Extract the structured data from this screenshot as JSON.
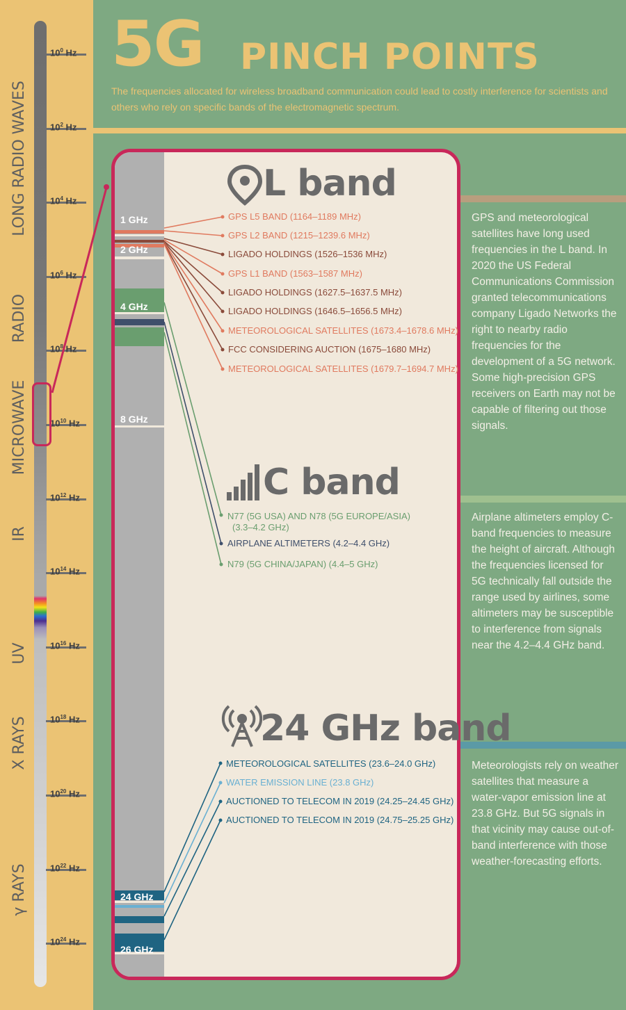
{
  "title": {
    "main": "5G",
    "sub": "PINCH POINTS"
  },
  "subtitle": "The frequencies allocated for wireless broadband communication could lead to costly interference for scientists and others who rely on specific bands of the electromagnetic spectrum.",
  "spectrum": {
    "ticks": [
      {
        "base": "10",
        "exp": "0",
        "unit": "Hz"
      },
      {
        "base": "10",
        "exp": "2",
        "unit": "Hz"
      },
      {
        "base": "10",
        "exp": "4",
        "unit": "Hz"
      },
      {
        "base": "10",
        "exp": "6",
        "unit": "Hz"
      },
      {
        "base": "10",
        "exp": "8",
        "unit": "Hz"
      },
      {
        "base": "10",
        "exp": "10",
        "unit": "Hz"
      },
      {
        "base": "10",
        "exp": "12",
        "unit": "Hz"
      },
      {
        "base": "10",
        "exp": "14",
        "unit": "Hz"
      },
      {
        "base": "10",
        "exp": "16",
        "unit": "Hz"
      },
      {
        "base": "10",
        "exp": "18",
        "unit": "Hz"
      },
      {
        "base": "10",
        "exp": "20",
        "unit": "Hz"
      },
      {
        "base": "10",
        "exp": "22",
        "unit": "Hz"
      },
      {
        "base": "10",
        "exp": "24",
        "unit": "Hz"
      }
    ],
    "regions": [
      "LONG RADIO WAVES",
      "RADIO",
      "MICROWAVE",
      "IR",
      "UV",
      "X RAYS",
      "γ RAYS"
    ]
  },
  "gray_labels": [
    "1 GHz",
    "2 GHz",
    "4 GHz",
    "8 GHz",
    "24 GHz",
    "26 GHz"
  ],
  "l_band": {
    "title": "L band",
    "items": [
      "GPS L5 BAND (1164–1189 MHz)",
      "GPS L2 BAND (1215–1239.6 MHz)",
      "LIGADO HOLDINGS (1526–1536 MHz)",
      "GPS L1 BAND (1563–1587 MHz)",
      "LIGADO HOLDINGS (1627.5–1637.5 MHz)",
      "LIGADO HOLDINGS (1646.5–1656.5 MHz)",
      "METEOROLOGICAL SATELLITES (1673.4–1678.6 MHz)",
      "FCC CONSIDERING AUCTION (1675–1680 MHz)",
      "METEOROLOGICAL SATELLITES (1679.7–1694.7 MHz)"
    ],
    "description": "GPS and meteorological satellites have long used frequencies in the L band. In 2020 the US Federal Communications Commission granted telecommunications company Ligado Networks the right to nearby radio frequencies for the development of a 5G network. Some high-precision GPS receivers on Earth may not be capable of filtering out those signals."
  },
  "c_band": {
    "title": "C band",
    "items": [
      "N77 (5G USA) AND N78 (5G EUROPE/ASIA)",
      "(3.3–4.2 GHz)",
      "AIRPLANE ALTIMETERS (4.2–4.4 GHz)",
      "N79 (5G CHINA/JAPAN) (4.4–5 GHz)"
    ],
    "description": "Airplane altimeters employ C-band frequencies to measure the height of aircraft. Although the frequencies licensed for 5G technically fall outside the range used by airlines, some altimeters may be susceptible to interference from signals near the 4.2–4.4 GHz band."
  },
  "ghz24_band": {
    "title": "24 GHz band",
    "items": [
      "METEOROLOGICAL SATELLITES (23.6–24.0 GHz)",
      "WATER EMISSION LINE (23.8 GHz)",
      "AUCTIONED TO TELECOM IN 2019 (24.25–24.45 GHz)",
      "AUCTIONED TO TELECOM IN 2019 (24.75–25.25 GHz)"
    ],
    "description": "Meteorologists rely on weather satellites that measure a water-vapor emission line at 23.8 GHz. But 5G signals in that vicinity may cause out-of-band interference with those weather-forecasting efforts."
  },
  "colors": {
    "background": "#7ea982",
    "gold": "#ebc374",
    "magenta": "#c8285a",
    "panel": "#f1e9dc",
    "l_light": "#e07a5f",
    "l_dark": "#8a4a3a",
    "c_green": "#6a9e6f",
    "c_navy": "#3f4f6b",
    "k_dark": "#1f6482",
    "k_light": "#6ab0d2"
  },
  "icons": [
    "location-pin-icon",
    "signal-bars-icon",
    "radio-tower-icon"
  ]
}
